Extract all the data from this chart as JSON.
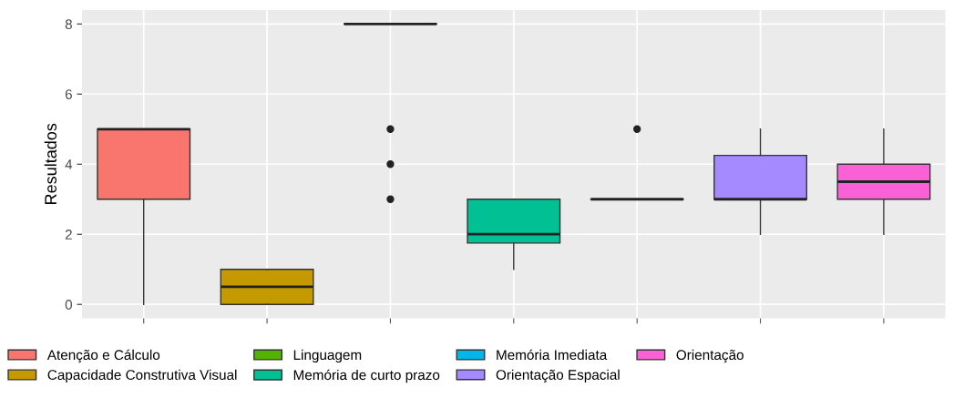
{
  "chart_data": {
    "type": "box",
    "ylabel": "Resultados",
    "categories": [
      null,
      null,
      null,
      null,
      null,
      null,
      null
    ],
    "series": [
      {
        "name": "Atenção e Cálculo",
        "color": "#f8766d",
        "boxes": [
          {
            "low": 0,
            "q1": 3,
            "median": 5,
            "q3": 5,
            "high": 5
          },
          null,
          null,
          null,
          null,
          null,
          null
        ]
      },
      {
        "name": "Capacidade Construtiva Visual",
        "color": "#c49a00",
        "boxes": [
          null,
          {
            "low": 0,
            "q1": 0,
            "median": 0.5,
            "q3": 1,
            "high": 1
          },
          null,
          null,
          null,
          null,
          null
        ]
      },
      {
        "name": "Linguagem",
        "color": "#53b400",
        "boxes": [
          null,
          null,
          {
            "low": 8,
            "q1": 8,
            "median": 8,
            "q3": 8,
            "high": 8,
            "outliers": [
              5,
              4,
              3
            ]
          },
          null,
          null,
          null,
          null
        ]
      },
      {
        "name": "Memória de curto prazo",
        "color": "#00c094",
        "boxes": [
          null,
          null,
          null,
          {
            "low": 1,
            "q1": 1.75,
            "median": 2,
            "q3": 3,
            "high": 3
          },
          null,
          null,
          null
        ]
      },
      {
        "name": "Memória Imediata",
        "color": "#00b6eb",
        "boxes": [
          null,
          null,
          null,
          null,
          {
            "low": 3,
            "q1": 3,
            "median": 3,
            "q3": 3,
            "high": 3,
            "outliers": [
              5
            ]
          },
          null,
          null
        ]
      },
      {
        "name": "Orientação Espacial",
        "color": "#a58aff",
        "boxes": [
          null,
          null,
          null,
          null,
          null,
          {
            "low": 2,
            "q1": 3,
            "median": 3,
            "q3": 4.25,
            "high": 5
          },
          null
        ]
      },
      {
        "name": "Orientação",
        "color": "#fb61d7",
        "boxes": [
          null,
          null,
          null,
          null,
          null,
          null,
          {
            "low": 2,
            "q1": 3,
            "median": 3.5,
            "q3": 4,
            "high": 5
          }
        ]
      }
    ],
    "ylim": [
      -0.4,
      8.4
    ],
    "yticks": [
      0,
      2,
      4,
      6,
      8
    ],
    "tick_labels": "y",
    "grid": true,
    "legend": "bottom"
  }
}
